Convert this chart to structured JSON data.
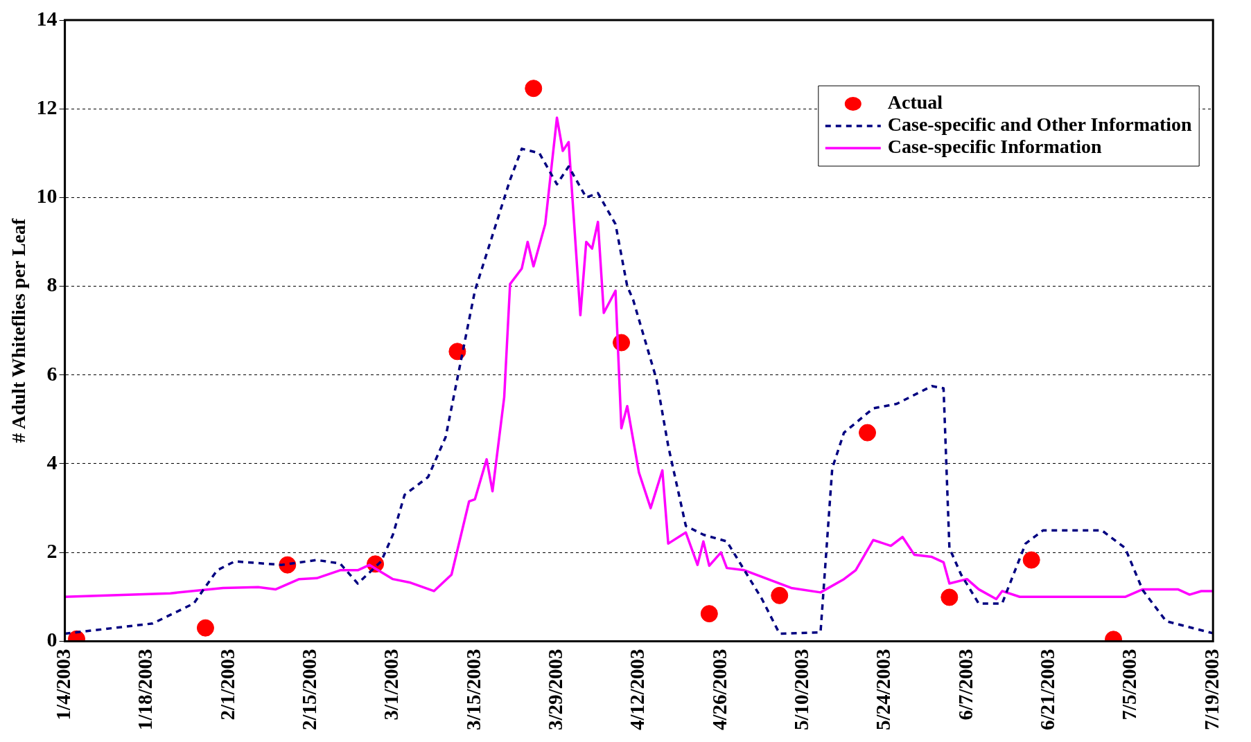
{
  "chart_data": {
    "type": "line",
    "ylabel": "# Adult Whiteflies per Leaf",
    "ylim": [
      0,
      14
    ],
    "yticks": [
      0,
      2,
      4,
      6,
      8,
      10,
      12,
      14
    ],
    "xlim": [
      "2003-01-04",
      "2003-07-19"
    ],
    "xticks": [
      {
        "value": "2003-01-04",
        "label": "1/4/2003"
      },
      {
        "value": "2003-01-18",
        "label": "1/18/2003"
      },
      {
        "value": "2003-02-01",
        "label": "2/1/2003"
      },
      {
        "value": "2003-02-15",
        "label": "2/15/2003"
      },
      {
        "value": "2003-03-01",
        "label": "3/1/2003"
      },
      {
        "value": "2003-03-15",
        "label": "3/15/2003"
      },
      {
        "value": "2003-03-29",
        "label": "3/29/2003"
      },
      {
        "value": "2003-04-12",
        "label": "4/12/2003"
      },
      {
        "value": "2003-04-26",
        "label": "4/26/2003"
      },
      {
        "value": "2003-05-10",
        "label": "5/10/2003"
      },
      {
        "value": "2003-05-24",
        "label": "5/24/2003"
      },
      {
        "value": "2003-06-07",
        "label": "6/7/2003"
      },
      {
        "value": "2003-06-21",
        "label": "6/21/2003"
      },
      {
        "value": "2003-07-05",
        "label": "7/5/2003"
      },
      {
        "value": "2003-07-19",
        "label": "7/19/2003"
      }
    ],
    "grid": "y",
    "legend": "top right",
    "series": [
      {
        "name": "Actual",
        "type": "scatter",
        "marker": "circle",
        "color": "#ff0000",
        "x": [
          "2003-01-06",
          "2003-01-28",
          "2003-02-11",
          "2003-02-26",
          "2003-03-12",
          "2003-03-25",
          "2003-04-09",
          "2003-04-24",
          "2003-05-06",
          "2003-05-21",
          "2003-06-04",
          "2003-06-18",
          "2003-07-02"
        ],
        "values": [
          0.05,
          0.3,
          1.72,
          1.74,
          6.53,
          12.46,
          6.73,
          0.62,
          1.03,
          4.7,
          0.99,
          1.83,
          0.04
        ]
      },
      {
        "name": "Case-specific and Other Information",
        "type": "line",
        "line_style": "dashed",
        "color": "#000080",
        "x": [
          "2003-01-04",
          "2003-01-19",
          "2003-01-26",
          "2003-01-30",
          "2003-02-02",
          "2003-02-10",
          "2003-02-16",
          "2003-02-20",
          "2003-02-23",
          "2003-02-27",
          "2003-03-01",
          "2003-03-03",
          "2003-03-07",
          "2003-03-10",
          "2003-03-15",
          "2003-03-21",
          "2003-03-23",
          "2003-03-26",
          "2003-03-29",
          "2003-03-31",
          "2003-04-03",
          "2003-04-05",
          "2003-04-08",
          "2003-04-10",
          "2003-04-11",
          "2003-04-15",
          "2003-04-17",
          "2003-04-20",
          "2003-04-23",
          "2003-04-27",
          "2003-05-03",
          "2003-05-06",
          "2003-05-13",
          "2003-05-15",
          "2003-05-17",
          "2003-05-22",
          "2003-05-26",
          "2003-06-01",
          "2003-06-03",
          "2003-06-04",
          "2003-06-06",
          "2003-06-09",
          "2003-06-13",
          "2003-06-17",
          "2003-06-20",
          "2003-06-30",
          "2003-07-04",
          "2003-07-07",
          "2003-07-11",
          "2003-07-19"
        ],
        "values": [
          0.17,
          0.4,
          0.85,
          1.6,
          1.8,
          1.72,
          1.83,
          1.75,
          1.3,
          1.8,
          2.4,
          3.3,
          3.7,
          4.6,
          7.9,
          10.4,
          11.1,
          11.0,
          10.3,
          10.7,
          10.0,
          10.1,
          9.4,
          8.0,
          7.7,
          5.9,
          4.4,
          2.6,
          2.4,
          2.25,
          0.95,
          0.17,
          0.2,
          3.9,
          4.7,
          5.25,
          5.35,
          5.75,
          5.7,
          2.1,
          1.5,
          0.85,
          0.85,
          2.2,
          2.5,
          2.5,
          2.1,
          1.15,
          0.45,
          0.18
        ]
      },
      {
        "name": "Case-specific Information",
        "type": "line",
        "line_style": "solid",
        "color": "#ff00ff",
        "x": [
          "2003-01-04",
          "2003-01-22",
          "2003-01-31",
          "2003-02-06",
          "2003-02-09",
          "2003-02-13",
          "2003-02-16",
          "2003-02-20",
          "2003-02-23",
          "2003-02-25",
          "2003-03-01",
          "2003-03-04",
          "2003-03-08",
          "2003-03-11",
          "2003-03-14",
          "2003-03-15",
          "2003-03-17",
          "2003-03-18",
          "2003-03-20",
          "2003-03-21",
          "2003-03-23",
          "2003-03-24",
          "2003-03-25",
          "2003-03-27",
          "2003-03-29",
          "2003-03-30",
          "2003-03-31",
          "2003-04-02",
          "2003-04-03",
          "2003-04-04",
          "2003-04-05",
          "2003-04-06",
          "2003-04-08",
          "2003-04-09",
          "2003-04-10",
          "2003-04-12",
          "2003-04-14",
          "2003-04-16",
          "2003-04-17",
          "2003-04-20",
          "2003-04-22",
          "2003-04-23",
          "2003-04-24",
          "2003-04-26",
          "2003-04-27",
          "2003-04-30",
          "2003-05-04",
          "2003-05-08",
          "2003-05-13",
          "2003-05-17",
          "2003-05-19",
          "2003-05-22",
          "2003-05-25",
          "2003-05-27",
          "2003-05-29",
          "2003-06-01",
          "2003-06-03",
          "2003-06-04",
          "2003-06-07",
          "2003-06-09",
          "2003-06-12",
          "2003-06-13",
          "2003-06-16",
          "2003-07-04",
          "2003-07-07",
          "2003-07-13",
          "2003-07-15",
          "2003-07-17",
          "2003-07-19"
        ],
        "values": [
          1.0,
          1.08,
          1.2,
          1.22,
          1.17,
          1.4,
          1.42,
          1.6,
          1.6,
          1.72,
          1.4,
          1.32,
          1.13,
          1.5,
          3.15,
          3.2,
          4.1,
          3.38,
          5.5,
          8.05,
          8.4,
          9.0,
          8.45,
          9.4,
          11.8,
          11.05,
          11.25,
          7.35,
          9.0,
          8.85,
          9.45,
          7.4,
          7.9,
          4.8,
          5.3,
          3.8,
          3.0,
          3.85,
          2.2,
          2.45,
          1.72,
          2.25,
          1.7,
          2.0,
          1.65,
          1.6,
          1.4,
          1.2,
          1.1,
          1.4,
          1.6,
          2.28,
          2.15,
          2.35,
          1.95,
          1.9,
          1.78,
          1.3,
          1.4,
          1.17,
          0.95,
          1.13,
          1.0,
          1.0,
          1.17,
          1.17,
          1.05,
          1.13,
          1.13
        ]
      }
    ]
  }
}
